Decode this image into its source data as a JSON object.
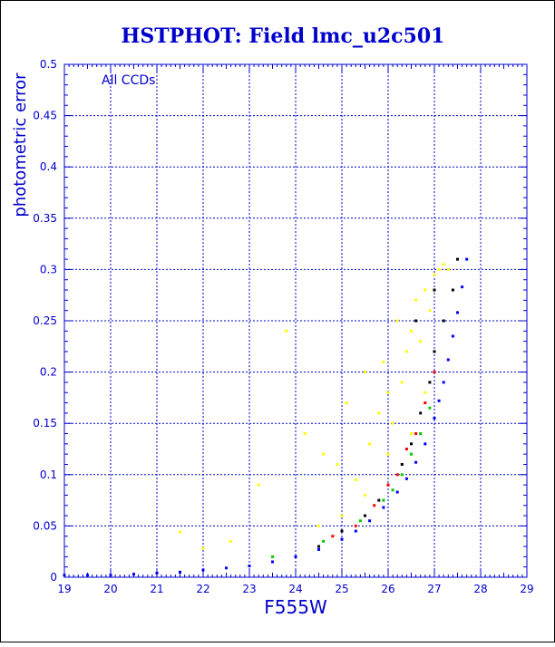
{
  "chart_data": {
    "type": "scatter",
    "title": "HSTPHOT: Field lmc_u2c501",
    "xlabel": "F555W",
    "ylabel": "photometric error",
    "annotation": "All CCDs",
    "xlim": [
      19,
      29
    ],
    "ylim": [
      0,
      0.5
    ],
    "x_ticks": [
      "19",
      "20",
      "21",
      "22",
      "23",
      "24",
      "25",
      "26",
      "27",
      "28",
      "29"
    ],
    "y_ticks": [
      "0",
      "0.05",
      "0.1",
      "0.15",
      "0.2",
      "0.25",
      "0.3",
      "0.35",
      "0.4",
      "0.45",
      "0.5"
    ],
    "grid": true,
    "colors": {
      "axis": "#0000cc",
      "title": "#0000cc",
      "grid": "#0000cc",
      "blue": "#0000ff",
      "yellow": "#ffff00",
      "black": "#000000",
      "red": "#ff0000",
      "green": "#00cc00",
      "frame": "#000000"
    },
    "series": [
      {
        "color": "blue",
        "x": [
          19.0,
          19.5,
          20.0,
          20.5,
          21.0,
          21.5,
          22.0,
          22.5,
          23.0,
          23.5,
          24.0,
          24.5,
          25.0,
          25.3,
          25.6,
          25.9,
          26.2,
          26.4,
          26.6,
          26.8,
          27.0,
          27.1,
          27.2,
          27.3,
          27.4,
          27.5,
          27.6,
          27.7
        ],
        "y": [
          0.002,
          0.002,
          0.002,
          0.003,
          0.004,
          0.005,
          0.007,
          0.009,
          0.011,
          0.015,
          0.02,
          0.027,
          0.037,
          0.045,
          0.055,
          0.068,
          0.083,
          0.096,
          0.112,
          0.13,
          0.155,
          0.172,
          0.19,
          0.212,
          0.235,
          0.258,
          0.283,
          0.31
        ]
      },
      {
        "color": "yellow",
        "x": [
          21.5,
          22.0,
          22.6,
          23.2,
          23.5,
          23.8,
          24.2,
          24.6,
          24.9,
          25.1,
          25.3,
          25.5,
          25.6,
          25.8,
          25.9,
          26.0,
          26.1,
          26.2,
          26.3,
          26.4,
          26.5,
          26.6,
          26.7,
          26.8,
          26.9,
          27.0,
          27.1,
          27.2,
          27.3,
          26.0,
          25.5,
          25.0,
          24.5,
          26.5,
          26.8,
          27.0
        ],
        "y": [
          0.044,
          0.028,
          0.035,
          0.09,
          0.02,
          0.24,
          0.14,
          0.12,
          0.11,
          0.17,
          0.095,
          0.2,
          0.13,
          0.16,
          0.21,
          0.18,
          0.15,
          0.25,
          0.19,
          0.22,
          0.24,
          0.27,
          0.23,
          0.28,
          0.26,
          0.295,
          0.3,
          0.305,
          0.3,
          0.12,
          0.08,
          0.06,
          0.05,
          0.14,
          0.18,
          0.22
        ]
      },
      {
        "color": "black",
        "x": [
          24.5,
          25.0,
          25.5,
          25.8,
          26.0,
          26.3,
          26.5,
          26.7,
          26.9,
          27.0,
          27.2,
          27.4,
          27.5,
          27.0,
          26.6
        ],
        "y": [
          0.03,
          0.045,
          0.06,
          0.075,
          0.09,
          0.11,
          0.13,
          0.16,
          0.19,
          0.22,
          0.25,
          0.28,
          0.31,
          0.28,
          0.25
        ]
      },
      {
        "color": "red",
        "x": [
          24.8,
          25.3,
          25.7,
          26.0,
          26.2,
          26.4,
          26.6,
          26.8,
          27.0
        ],
        "y": [
          0.04,
          0.05,
          0.07,
          0.09,
          0.1,
          0.125,
          0.14,
          0.17,
          0.2
        ]
      },
      {
        "color": "green",
        "x": [
          23.5,
          24.6,
          25.4,
          25.9,
          26.1,
          26.3,
          26.5,
          26.7,
          26.9
        ],
        "y": [
          0.02,
          0.035,
          0.055,
          0.075,
          0.085,
          0.1,
          0.12,
          0.14,
          0.165
        ]
      }
    ]
  }
}
